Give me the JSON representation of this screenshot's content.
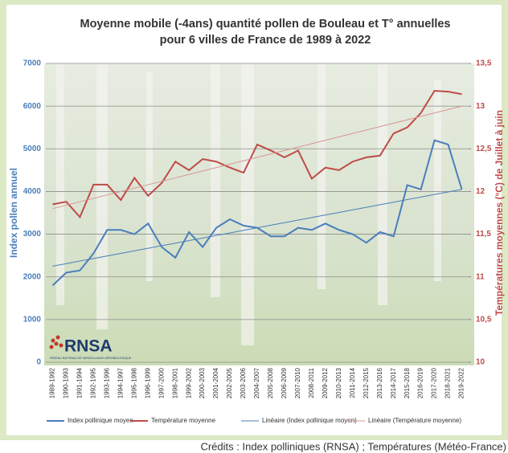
{
  "chart_data": {
    "type": "line",
    "title_lines": [
      "Moyenne mobile (-4ans) quantité pollen de Bouleau et T° annuelles",
      "pour 6 villes de France de 1989 à 2022"
    ],
    "ylabel": "Index pollen annuel",
    "y2label": "Températures moyennes (°C) de Juillet à juin",
    "categories": [
      "1989-1992",
      "1990-1993",
      "1991-1994",
      "1992-1995",
      "1993-1996",
      "1994-1997",
      "1995-1998",
      "1996-1999",
      "1997-2000",
      "1998-2001",
      "1999-2002",
      "2000-2003",
      "2001-2004",
      "2002-2005",
      "2003-2006",
      "2004-2007",
      "2005-2008",
      "2006-2009",
      "2007-2010",
      "2008-2011",
      "2009-2012",
      "2010-2013",
      "2011-2014",
      "2012-2015",
      "2013-2016",
      "2014-2017",
      "2015-2018",
      "2016-2019",
      "2017-2020",
      "2018-2021",
      "2019-2022"
    ],
    "ylim": [
      0,
      7000
    ],
    "yticks": [
      0,
      1000,
      2000,
      3000,
      4000,
      5000,
      6000,
      7000
    ],
    "y2lim": [
      10,
      13.5
    ],
    "y2ticks": [
      10,
      {
        "value": 10.5,
        "label": "10,5"
      },
      11,
      {
        "value": 11.5,
        "label": "11,5"
      },
      12,
      {
        "value": 12.5,
        "label": "12,5"
      },
      13,
      {
        "value": 13.5,
        "label": "13,5"
      }
    ],
    "grid": true,
    "series": [
      {
        "name": "Index pollinique moyen",
        "color": "#4a7ebb",
        "width": 2,
        "values": [
          1800,
          2100,
          2150,
          2550,
          3100,
          3100,
          3000,
          3250,
          2700,
          2450,
          3050,
          2700,
          3150,
          3350,
          3200,
          3150,
          2950,
          2950,
          3150,
          3100,
          3250,
          3100,
          3000,
          2800,
          3050,
          2950,
          4150,
          4050,
          5200,
          5100,
          4050
        ]
      },
      {
        "name": "Température moyenne",
        "color": "#be4b48",
        "width": 2,
        "axis": "y2",
        "values": [
          11.85,
          11.88,
          11.7,
          12.08,
          12.08,
          11.9,
          12.16,
          11.95,
          12.1,
          12.35,
          12.25,
          12.38,
          12.35,
          12.28,
          12.22,
          12.55,
          12.48,
          12.4,
          12.48,
          12.15,
          12.28,
          12.25,
          12.35,
          12.4,
          12.42,
          12.68,
          12.75,
          12.92,
          13.18,
          13.17,
          13.14
        ]
      },
      {
        "name": "Linéaire (Index pollinique moyen)",
        "color": "#4a7ebb",
        "width": 1,
        "values": [
          2250,
          2310,
          2370,
          2430,
          2490,
          2550,
          2610,
          2670,
          2730,
          2790,
          2850,
          2910,
          2970,
          3030,
          3090,
          3150,
          3210,
          3270,
          3330,
          3390,
          3450,
          3510,
          3570,
          3630,
          3690,
          3750,
          3810,
          3870,
          3930,
          3990,
          4050
        ]
      },
      {
        "name": "Linéaire (Température moyenne)",
        "color": "#d99694",
        "width": 1,
        "axis": "y2",
        "values": [
          11.8,
          11.84,
          11.88,
          11.92,
          11.96,
          12,
          12.04,
          12.08,
          12.12,
          12.16,
          12.2,
          12.24,
          12.28,
          12.32,
          12.36,
          12.4,
          12.44,
          12.48,
          12.52,
          12.56,
          12.6,
          12.64,
          12.68,
          12.72,
          12.76,
          12.8,
          12.84,
          12.88,
          12.92,
          12.96,
          13
        ]
      }
    ],
    "logo": {
      "text": "RNSA",
      "subtext": "RÉSEAU NATIONAL DE SURVEILLANCE AÉROBIOLOGIQUE"
    },
    "credit": "Crédits : Index polliniques (RNSA) ; Températures (Météo-France)"
  }
}
